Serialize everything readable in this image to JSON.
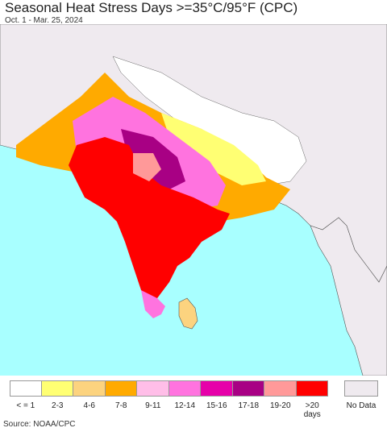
{
  "title": "Seasonal Heat Stress Days >=35°C/95°F (CPC)",
  "subtitle": "Oct. 1 - Mar. 25, 2024",
  "source": "Source: NOAA/CPC",
  "legend": {
    "items": [
      {
        "label": "< = 1",
        "color": "#ffffff"
      },
      {
        "label": "2-3",
        "color": "#ffff73"
      },
      {
        "label": "4-6",
        "color": "#fcd37f"
      },
      {
        "label": "7-8",
        "color": "#ffaa00"
      },
      {
        "label": "9-11",
        "color": "#ffbee8"
      },
      {
        "label": "12-14",
        "color": "#ff73df"
      },
      {
        "label": "15-16",
        "color": "#e600a9"
      },
      {
        "label": "17-18",
        "color": "#a80084"
      },
      {
        "label": "19-20",
        "color": "#ff9999"
      },
      {
        "label": ">20 days",
        "color": "#ff0000"
      }
    ],
    "no_data": {
      "label": "No Data",
      "color": "#efeaef"
    }
  },
  "map_colors": {
    "ocean": "#a8ffff",
    "land_no_data": "#efeaef",
    "land_low": "#ffffff",
    "border": "#333333"
  }
}
